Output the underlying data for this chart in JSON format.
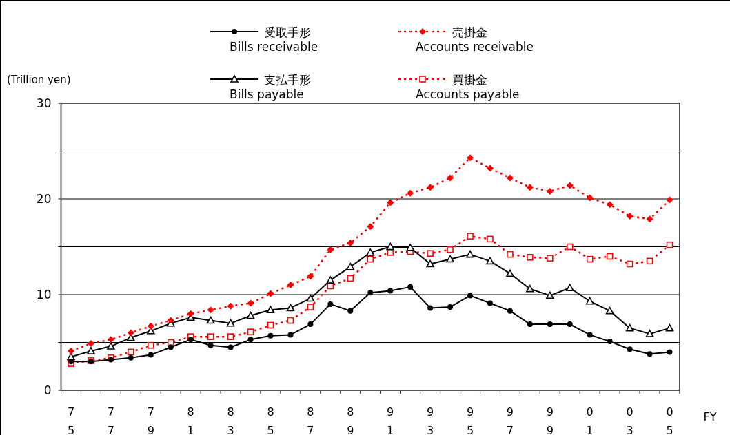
{
  "chart_data": {
    "type": "line",
    "ylabel": "(Trillion yen)",
    "xlabel": "FY",
    "categories": [
      "75",
      null,
      "77",
      null,
      "79",
      null,
      "81",
      null,
      "83",
      null,
      "85",
      null,
      "87",
      null,
      "89",
      null,
      "91",
      null,
      "93",
      null,
      "95",
      null,
      "97",
      null,
      "99",
      null,
      "01",
      null,
      "03",
      null,
      "05"
    ],
    "ylim": [
      0,
      30
    ],
    "yticks": [
      0,
      {
        "value": 5,
        "label": null
      },
      10,
      {
        "value": 15,
        "label": null
      },
      20,
      {
        "value": 25,
        "label": null
      },
      30
    ],
    "grid": "y",
    "legend": "top",
    "series": [
      {
        "name": "受取手形\nBills receivable",
        "color": "#000000",
        "marker": "circle",
        "line_style": "solid",
        "values": [
          3.0,
          3.0,
          3.2,
          3.4,
          3.7,
          4.5,
          5.3,
          4.7,
          4.5,
          5.3,
          5.7,
          5.8,
          6.9,
          9.0,
          8.3,
          10.2,
          10.4,
          10.8,
          8.6,
          8.7,
          9.9,
          9.1,
          8.3,
          6.9,
          6.9,
          6.9,
          5.8,
          5.1,
          4.3,
          3.8,
          4.0
        ]
      },
      {
        "name": "売掛金\nAccounts receivable",
        "color": "#ff0000",
        "marker": "diamond",
        "line_style": "dotted",
        "values": [
          4.1,
          4.9,
          5.3,
          6.0,
          6.7,
          7.3,
          8.0,
          8.4,
          8.8,
          9.1,
          10.1,
          11.0,
          11.9,
          14.7,
          15.4,
          17.1,
          19.6,
          20.6,
          21.2,
          22.2,
          24.3,
          23.2,
          22.2,
          21.2,
          20.8,
          21.4,
          20.1,
          19.4,
          18.2,
          17.9,
          19.9
        ]
      },
      {
        "name": "支払手形\nBills payable",
        "color": "#000000",
        "marker": "triangle",
        "line_style": "solid",
        "values": [
          3.5,
          4.1,
          4.6,
          5.5,
          6.2,
          7.0,
          7.6,
          7.3,
          7.0,
          7.8,
          8.4,
          8.6,
          9.6,
          11.5,
          12.9,
          14.4,
          15.0,
          14.9,
          13.2,
          13.7,
          14.2,
          13.5,
          12.2,
          10.6,
          9.9,
          10.7,
          9.3,
          8.3,
          6.5,
          5.9,
          6.5
        ]
      },
      {
        "name": "買掛金\nAccounts payable",
        "color": "#ff0000",
        "marker": "square",
        "line_style": "dotted",
        "values": [
          2.8,
          3.1,
          3.4,
          4.0,
          4.7,
          5.0,
          5.6,
          5.6,
          5.6,
          6.1,
          6.8,
          7.3,
          8.7,
          10.9,
          11.7,
          13.7,
          14.4,
          14.5,
          14.3,
          14.7,
          16.1,
          15.8,
          14.2,
          13.9,
          13.8,
          15.0,
          13.7,
          14.0,
          13.2,
          13.5,
          15.2
        ]
      }
    ]
  }
}
